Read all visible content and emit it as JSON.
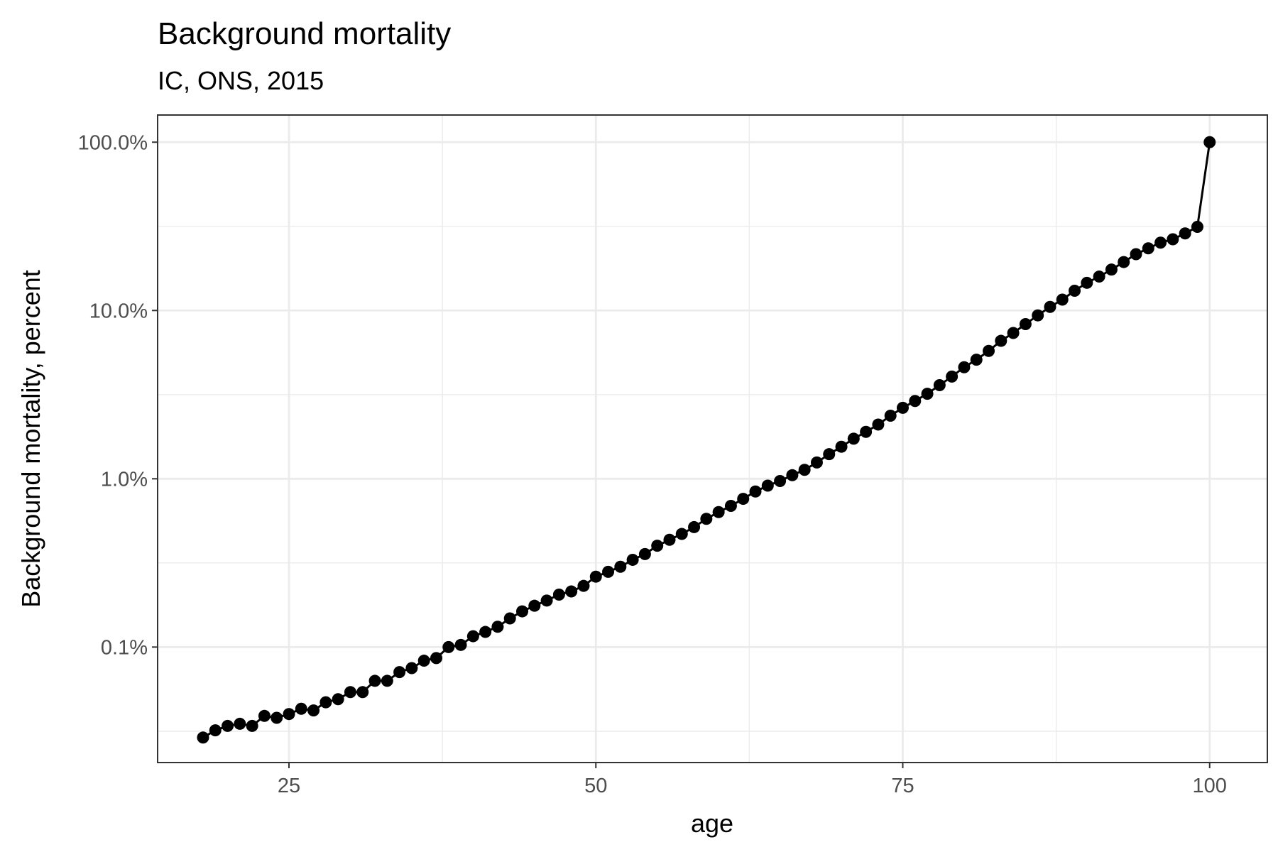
{
  "chart_data": {
    "type": "line",
    "title": "Background mortality",
    "subtitle": "IC, ONS, 2015",
    "xlabel": "age",
    "ylabel": "Background mortality, percent",
    "x_scale": "linear",
    "y_scale": "log10",
    "xlim": [
      14.3,
      104.7
    ],
    "ylim": [
      0.0206,
      145
    ],
    "x_ticks": [
      25,
      50,
      75,
      100
    ],
    "x_tick_labels": [
      "25",
      "50",
      "75",
      "100"
    ],
    "y_ticks": [
      0.1,
      1,
      10,
      100
    ],
    "y_tick_labels": [
      "0.1%",
      "1.0%",
      "10.0%",
      "100.0%"
    ],
    "grid": true,
    "legend": "none",
    "colors": {
      "series": "#000000",
      "grid": "#ebebeb",
      "panel_border": "#333333"
    },
    "series": [
      {
        "x": [
          18,
          19,
          20,
          21,
          22,
          23,
          24,
          25,
          26,
          27,
          28,
          29,
          30,
          31,
          32,
          33,
          34,
          35,
          36,
          37,
          38,
          39,
          40,
          41,
          42,
          43,
          44,
          45,
          46,
          47,
          48,
          49,
          50,
          51,
          52,
          53,
          54,
          55,
          56,
          57,
          58,
          59,
          60,
          61,
          62,
          63,
          64,
          65,
          66,
          67,
          68,
          69,
          70,
          71,
          72,
          73,
          74,
          75,
          76,
          77,
          78,
          79,
          80,
          81,
          82,
          83,
          84,
          85,
          86,
          87,
          88,
          89,
          90,
          91,
          92,
          93,
          94,
          95,
          96,
          97,
          98,
          99,
          100
        ],
        "y": [
          0.029,
          0.032,
          0.034,
          0.035,
          0.034,
          0.039,
          0.038,
          0.04,
          0.043,
          0.042,
          0.047,
          0.049,
          0.054,
          0.054,
          0.063,
          0.063,
          0.071,
          0.075,
          0.083,
          0.086,
          0.1,
          0.103,
          0.116,
          0.123,
          0.132,
          0.148,
          0.163,
          0.176,
          0.189,
          0.205,
          0.214,
          0.231,
          0.262,
          0.28,
          0.3,
          0.33,
          0.357,
          0.4,
          0.434,
          0.47,
          0.516,
          0.578,
          0.634,
          0.69,
          0.76,
          0.84,
          0.91,
          0.97,
          1.05,
          1.13,
          1.25,
          1.4,
          1.55,
          1.73,
          1.9,
          2.1,
          2.37,
          2.64,
          2.9,
          3.2,
          3.6,
          4.05,
          4.6,
          5.1,
          5.75,
          6.6,
          7.35,
          8.3,
          9.35,
          10.5,
          11.6,
          13.1,
          14.6,
          15.9,
          17.5,
          19.4,
          21.6,
          23.4,
          25.3,
          26.5,
          28.7,
          31.4,
          100
        ]
      }
    ]
  }
}
